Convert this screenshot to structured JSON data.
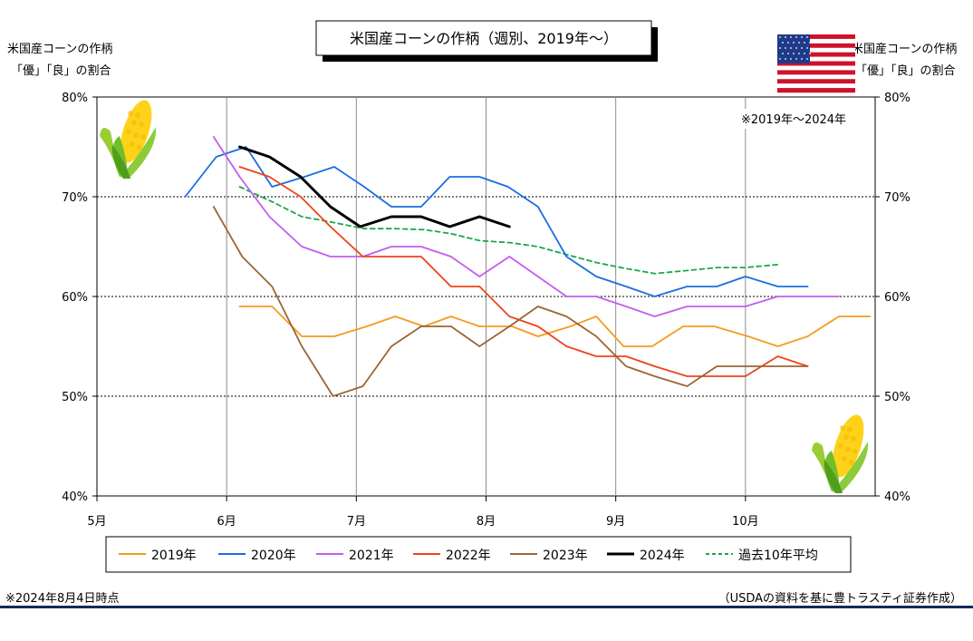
{
  "chart_data": {
    "type": "line",
    "title": "米国産コーンの作柄（週別、2019年～）",
    "ylabel_left": [
      "米国産コーンの作柄",
      "「優」「良」の割合"
    ],
    "ylabel_right": [
      "米国産コーンの作柄",
      "「優」「良」の割合"
    ],
    "note_range": "※2019年～2024年",
    "x_tick_labels": [
      "5月",
      "6月",
      "7月",
      "8月",
      "9月",
      "10月"
    ],
    "x_ticks": [
      0,
      1,
      2,
      3,
      4,
      5
    ],
    "xlim": [
      0,
      6
    ],
    "ylim": [
      40,
      80
    ],
    "y_ticks": [
      40,
      50,
      60,
      70,
      80
    ],
    "y_tick_labels": [
      "40%",
      "50%",
      "60%",
      "70%",
      "80%"
    ],
    "grid": "horizontal dotted at 50%, 60%, 70%; vertical at month starts",
    "legend_position": "bottom",
    "footnote_left": "※2024年8月4日時点",
    "footnote_right": "（USDAの資料を基に豊トラスティ証券作成）",
    "series": [
      {
        "name": "2019年",
        "color": "#f59b1e",
        "style": "solid",
        "x": [
          1.1,
          1.35,
          1.58,
          1.83,
          2.08,
          2.3,
          2.52,
          2.73,
          2.95,
          3.2,
          3.4,
          3.65,
          3.85,
          4.06,
          4.28,
          4.52,
          4.76,
          5.02,
          5.25,
          5.48,
          5.72,
          5.96
        ],
        "y": [
          59,
          59,
          56,
          56,
          57,
          58,
          57,
          58,
          57,
          57,
          56,
          57,
          58,
          55,
          55,
          57,
          57,
          56,
          55,
          56,
          58,
          58
        ]
      },
      {
        "name": "2020年",
        "color": "#1a6fe0",
        "style": "solid",
        "x": [
          0.68,
          0.92,
          1.15,
          1.35,
          1.6,
          1.83,
          2.06,
          2.27,
          2.5,
          2.72,
          2.95,
          3.17,
          3.4,
          3.62,
          3.85,
          4.08,
          4.3,
          4.55,
          4.78,
          5.0,
          5.25,
          5.48
        ],
        "y": [
          70,
          74,
          75,
          71,
          72,
          73,
          71,
          69,
          69,
          72,
          72,
          71,
          69,
          64,
          62,
          61,
          60,
          61,
          61,
          62,
          61,
          61
        ]
      },
      {
        "name": "2021年",
        "color": "#c45cf0",
        "style": "solid",
        "x": [
          0.9,
          1.1,
          1.33,
          1.58,
          1.8,
          2.05,
          2.27,
          2.5,
          2.73,
          2.95,
          3.18,
          3.4,
          3.62,
          3.85,
          4.08,
          4.3,
          4.55,
          4.78,
          5.0,
          5.25,
          5.48,
          5.72
        ],
        "y": [
          76,
          72,
          68,
          65,
          64,
          64,
          65,
          65,
          64,
          62,
          64,
          62,
          60,
          60,
          59,
          58,
          59,
          59,
          59,
          60,
          60,
          60
        ]
      },
      {
        "name": "2022年",
        "color": "#f0431a",
        "style": "solid",
        "x": [
          1.1,
          1.33,
          1.57,
          1.8,
          2.05,
          2.27,
          2.5,
          2.73,
          2.95,
          3.18,
          3.4,
          3.62,
          3.85,
          4.08,
          4.3,
          4.55,
          4.78,
          5.0,
          5.25,
          5.48
        ],
        "y": [
          73,
          72,
          70,
          67,
          64,
          64,
          64,
          61,
          61,
          58,
          57,
          55,
          54,
          54,
          53,
          52,
          52,
          52,
          54,
          53
        ]
      },
      {
        "name": "2023年",
        "color": "#9c6533",
        "style": "solid",
        "x": [
          0.9,
          1.12,
          1.35,
          1.58,
          1.82,
          2.05,
          2.27,
          2.5,
          2.73,
          2.95,
          3.18,
          3.4,
          3.62,
          3.85,
          4.08,
          4.3,
          4.55,
          4.78,
          5.02,
          5.25,
          5.48
        ],
        "y": [
          69,
          64,
          61,
          55,
          50,
          51,
          55,
          57,
          57,
          55,
          57,
          59,
          58,
          56,
          53,
          52,
          51,
          53,
          53,
          53,
          53
        ]
      },
      {
        "name": "2024年",
        "color": "#000000",
        "style": "solid-thick",
        "x": [
          1.1,
          1.33,
          1.57,
          1.8,
          2.03,
          2.27,
          2.5,
          2.72,
          2.95,
          3.18
        ],
        "y": [
          75,
          74,
          72,
          69,
          67,
          68,
          68,
          67,
          68,
          67
        ]
      },
      {
        "name": "過去10年平均",
        "color": "#1aa84b",
        "style": "dashed",
        "x": [
          1.1,
          1.35,
          1.58,
          1.83,
          2.06,
          2.3,
          2.52,
          2.73,
          2.95,
          3.18,
          3.4,
          3.62,
          3.85,
          4.08,
          4.3,
          4.55,
          4.78,
          5.0,
          5.25
        ],
        "y": [
          71,
          69.5,
          68,
          67.4,
          66.8,
          66.8,
          66.7,
          66.3,
          65.6,
          65.4,
          65,
          64.2,
          63.4,
          62.8,
          62.3,
          62.6,
          62.9,
          62.9,
          63.2
        ]
      }
    ]
  },
  "decor": {
    "flag_icon": "us-flag-icon",
    "corn_icon": "corn-icon",
    "bottom_rule_color": "#0d2a5c"
  }
}
